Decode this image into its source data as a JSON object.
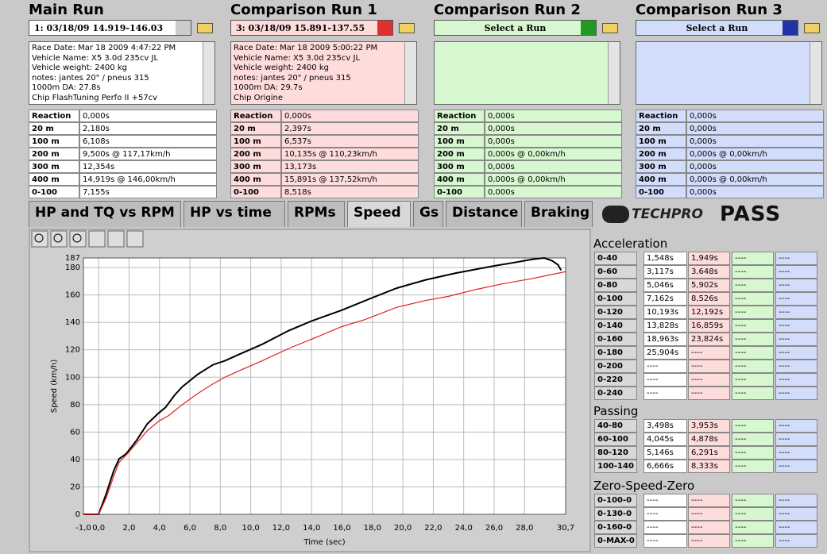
{
  "panels": [
    {
      "title": "Main Run",
      "selector": "1:  03/18/09 14.919-146.03",
      "color": "#ffffff",
      "info": [
        "Race Date: Mar 18 2009  4:47:22 PM",
        "Vehicle Name: X5 3.0d 235cv JL",
        "Vehicle weight: 2400 kg",
        "notes: jantes 20\" / pneus 315",
        "1000m DA: 27.8s",
        "Chip FlashTuning Perfo II +57cv"
      ],
      "table": [
        [
          "Reaction",
          "0,000s"
        ],
        [
          "20 m",
          "2,180s"
        ],
        [
          "100 m",
          "6,108s"
        ],
        [
          "200 m",
          "9,500s @ 117,17km/h"
        ],
        [
          "300 m",
          "12,354s"
        ],
        [
          "400 m",
          "14,919s @ 146,00km/h"
        ],
        [
          "0-100",
          "7,155s"
        ]
      ]
    },
    {
      "title": "Comparison Run 1",
      "selector": "3:  03/18/09 15.891-137.55",
      "color": "#ffdcdc",
      "info": [
        "Race Date: Mar 18 2009  5:00:22 PM",
        "Vehicle Name: X5 3.0d 235cv JL",
        "Vehicle weight: 2400 kg",
        "notes: jantes 20\" / pneus 315",
        "1000m DA: 29.7s",
        "Chip Origine"
      ],
      "table": [
        [
          "Reaction",
          "0,000s"
        ],
        [
          "20 m",
          "2,397s"
        ],
        [
          "100 m",
          "6,537s"
        ],
        [
          "200 m",
          "10,135s @ 110,23km/h"
        ],
        [
          "300 m",
          "13,173s"
        ],
        [
          "400 m",
          "15,891s @ 137,52km/h"
        ],
        [
          "0-100",
          "8,518s"
        ]
      ]
    },
    {
      "title": "Comparison Run 2",
      "selector": "Select a Run",
      "color": "#d6f7cf",
      "info": [],
      "table": [
        [
          "Reaction",
          "0,000s"
        ],
        [
          "20 m",
          "0,000s"
        ],
        [
          "100 m",
          "0,000s"
        ],
        [
          "200 m",
          "0,000s @ 0,00km/h"
        ],
        [
          "300 m",
          "0,000s"
        ],
        [
          "400 m",
          "0,000s @ 0,00km/h"
        ],
        [
          "0-100",
          "0,000s"
        ]
      ]
    },
    {
      "title": "Comparison Run 3",
      "selector": "Select a Run",
      "color": "#d2ddfb",
      "info": [],
      "table": [
        [
          "Reaction",
          "0,000s"
        ],
        [
          "20 m",
          "0,000s"
        ],
        [
          "100 m",
          "0,000s"
        ],
        [
          "200 m",
          "0,000s @ 0,00km/h"
        ],
        [
          "300 m",
          "0,000s"
        ],
        [
          "400 m",
          "0,000s @ 0,00km/h"
        ],
        [
          "0-100",
          "0,000s"
        ]
      ]
    }
  ],
  "tabs": [
    "HP and TQ vs RPM",
    "HP vs time",
    "RPMs",
    "Speed",
    "Gs",
    "Distance",
    "Braking"
  ],
  "selected_tab": 3,
  "logo": [
    "TECHPRO",
    "PASS"
  ],
  "chart_data": {
    "type": "line",
    "x_label": "Time (sec)",
    "y_label": "Speed (km/h)",
    "xlim": [
      -1,
      30.7
    ],
    "ylim": [
      0,
      187
    ],
    "xticks": [
      {
        "value": -1,
        "label": "-1,0"
      },
      {
        "value": 0,
        "label": "0,0"
      },
      {
        "value": 2,
        "label": "2,0"
      },
      {
        "value": 4,
        "label": "4,0"
      },
      {
        "value": 6,
        "label": "6,0"
      },
      {
        "value": 8,
        "label": "8,0"
      },
      {
        "value": 10,
        "label": "10,0"
      },
      {
        "value": 12,
        "label": "12,0"
      },
      {
        "value": 14,
        "label": "14,0"
      },
      {
        "value": 16,
        "label": "16,0"
      },
      {
        "value": 18,
        "label": "18,0"
      },
      {
        "value": 20,
        "label": "20,0"
      },
      {
        "value": 22,
        "label": "22,0"
      },
      {
        "value": 24,
        "label": "24,0"
      },
      {
        "value": 26,
        "label": "26,0"
      },
      {
        "value": 28,
        "label": "28,0"
      },
      {
        "value": 30.7,
        "label": "30,7"
      }
    ],
    "yticks": [
      0,
      20,
      40,
      60,
      80,
      100,
      120,
      140,
      160,
      180,
      187
    ],
    "grid": true,
    "series": [
      {
        "color": "#000000",
        "x": [
          -1,
          0,
          0.5,
          1,
          1.35,
          1.8,
          2.5,
          3.2,
          3.96,
          4.4,
          5,
          5.5,
          6.5,
          7.5,
          8.3,
          9.3,
          10.75,
          12.5,
          14,
          16,
          18,
          19.6,
          21.5,
          23.5,
          25.9,
          27.5,
          28.5,
          29.3,
          29.8,
          30.2,
          30.4
        ],
        "values": [
          0,
          0,
          15,
          32,
          40.5,
          44,
          54,
          66,
          74,
          78,
          87,
          93,
          102,
          109,
          112,
          117,
          124,
          134,
          141,
          149,
          158,
          165,
          171,
          176,
          181,
          184,
          186,
          187,
          185,
          182,
          178
        ]
      },
      {
        "color": "#dd2222",
        "x": [
          -1,
          0,
          0.5,
          1,
          1.35,
          1.88,
          2.5,
          3.2,
          3.96,
          4.6,
          5.5,
          6.5,
          7.5,
          8.3,
          9.5,
          10.75,
          12.5,
          14.5,
          16,
          17.5,
          19.6,
          21.5,
          23,
          24.8,
          26.5,
          28.5,
          30.7
        ],
        "values": [
          0,
          0,
          12,
          28,
          38,
          44,
          52,
          61,
          68,
          72,
          80,
          88,
          95,
          100,
          106,
          112,
          121,
          130,
          137,
          142,
          151,
          156,
          159,
          164,
          168,
          172,
          177
        ]
      }
    ]
  },
  "sections": [
    {
      "title": "Acceleration",
      "rows": [
        {
          "label": "0-40",
          "values": [
            "1,548s",
            "1,949s",
            "----",
            "----"
          ]
        },
        {
          "label": "0-60",
          "values": [
            "3,117s",
            "3,648s",
            "----",
            "----"
          ]
        },
        {
          "label": "0-80",
          "values": [
            "5,046s",
            "5,902s",
            "----",
            "----"
          ]
        },
        {
          "label": "0-100",
          "values": [
            "7,162s",
            "8,526s",
            "----",
            "----"
          ]
        },
        {
          "label": "0-120",
          "values": [
            "10,193s",
            "12,192s",
            "----",
            "----"
          ]
        },
        {
          "label": "0-140",
          "values": [
            "13,828s",
            "16,859s",
            "----",
            "----"
          ]
        },
        {
          "label": "0-160",
          "values": [
            "18,963s",
            "23,824s",
            "----",
            "----"
          ]
        },
        {
          "label": "0-180",
          "values": [
            "25,904s",
            "----",
            "----",
            "----"
          ]
        },
        {
          "label": "0-200",
          "values": [
            "----",
            "----",
            "----",
            "----"
          ]
        },
        {
          "label": "0-220",
          "values": [
            "----",
            "----",
            "----",
            "----"
          ]
        },
        {
          "label": "0-240",
          "values": [
            "----",
            "----",
            "----",
            "----"
          ]
        }
      ]
    },
    {
      "title": "Passing",
      "rows": [
        {
          "label": "40-80",
          "values": [
            "3,498s",
            "3,953s",
            "----",
            "----"
          ]
        },
        {
          "label": "60-100",
          "values": [
            "4,045s",
            "4,878s",
            "----",
            "----"
          ]
        },
        {
          "label": "80-120",
          "values": [
            "5,146s",
            "6,291s",
            "----",
            "----"
          ]
        },
        {
          "label": "100-140",
          "values": [
            "6,666s",
            "8,333s",
            "----",
            "----"
          ]
        }
      ]
    },
    {
      "title": "Zero-Speed-Zero",
      "rows": [
        {
          "label": "0-100-0",
          "values": [
            "----",
            "----",
            "----",
            "----"
          ]
        },
        {
          "label": "0-130-0",
          "values": [
            "----",
            "----",
            "----",
            "----"
          ]
        },
        {
          "label": "0-160-0",
          "values": [
            "----",
            "----",
            "----",
            "----"
          ]
        },
        {
          "label": "0-MAX-0",
          "values": [
            "----",
            "----",
            "----",
            "----"
          ]
        }
      ]
    }
  ]
}
